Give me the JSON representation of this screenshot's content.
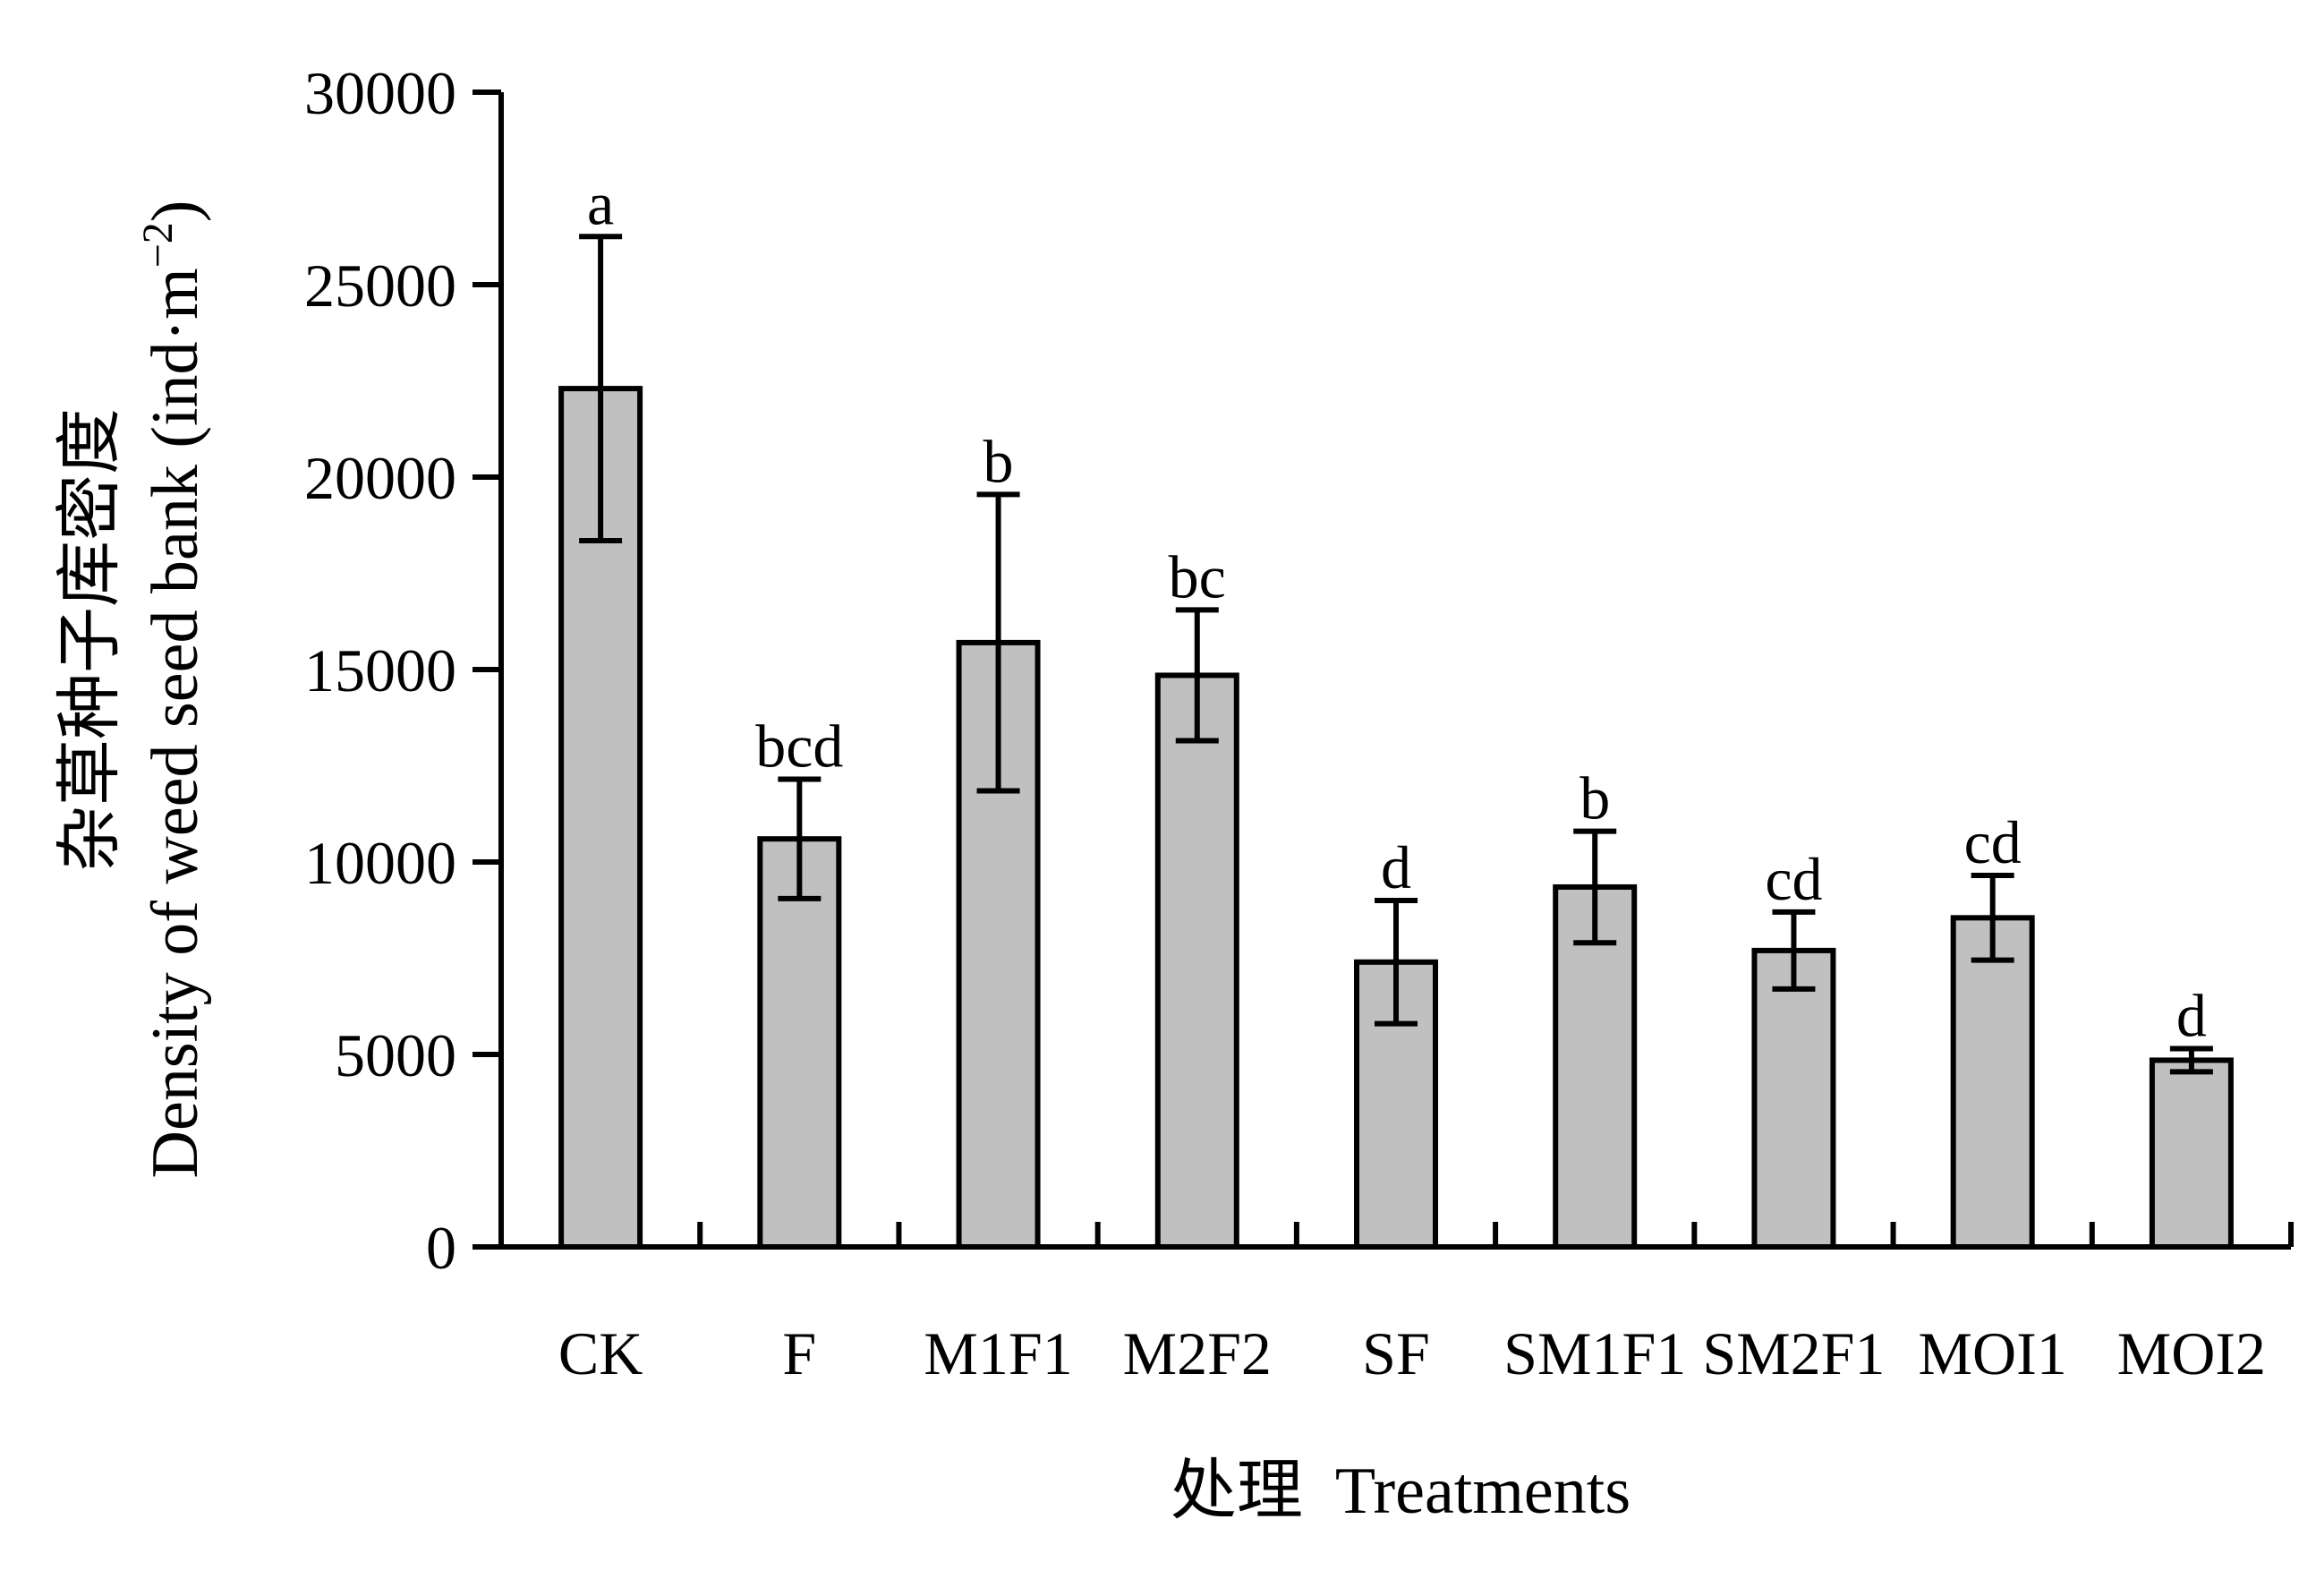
{
  "chart_data": {
    "type": "bar",
    "categories": [
      "CK",
      "F",
      "M1F1",
      "M2F2",
      "SF",
      "SM1F1",
      "SM2F1",
      "MOI1",
      "MOI2"
    ],
    "series": [
      {
        "values": [
          22300,
          10600,
          15700,
          14850,
          7400,
          9350,
          7700,
          8550,
          4850
        ],
        "error": [
          3950,
          1550,
          3850,
          1700,
          1600,
          1450,
          1000,
          1100,
          300
        ],
        "significance": [
          "a",
          "bcd",
          "b",
          "bc",
          "d",
          "b",
          "cd",
          "cd",
          "d"
        ]
      }
    ],
    "ylim": [
      0,
      30000
    ],
    "yticks": [
      0,
      5000,
      10000,
      15000,
      20000,
      25000,
      30000
    ],
    "ylabel_cn": "杂草种子库密度",
    "ylabel_en": "Density of weed seed bank (ind·m",
    "ylabel_unit_exp": "−2",
    "ylabel_close": ")",
    "xlabel_cn": "处理",
    "xlabel_en": "Treatments",
    "bar_color": "#c0c0c0",
    "grid": false,
    "legend": "none"
  }
}
